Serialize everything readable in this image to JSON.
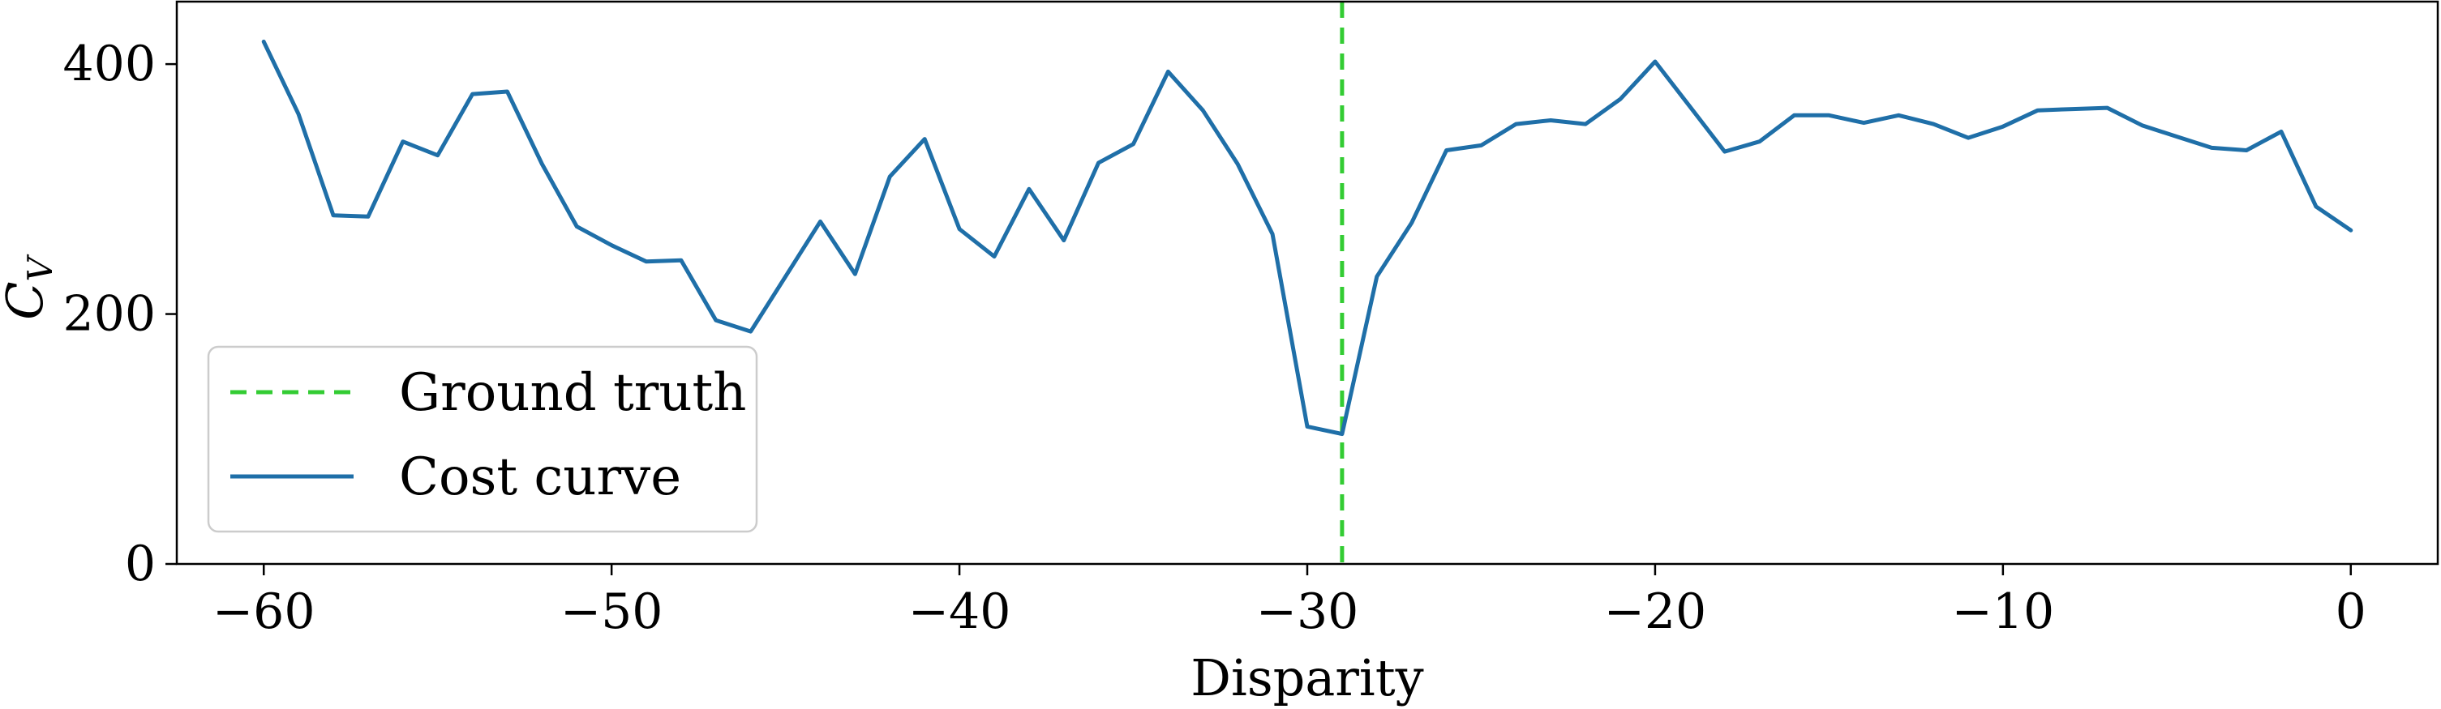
{
  "chart_data": {
    "type": "line",
    "xlabel": "Disparity",
    "ylabel": "C",
    "ylabel_sub": "V",
    "xlim": [
      -62.5,
      2.5
    ],
    "ylim": [
      0,
      450
    ],
    "xticks": [
      -60,
      -50,
      -40,
      -30,
      -20,
      -10,
      0
    ],
    "xtick_labels": [
      "−60",
      "−50",
      "−40",
      "−30",
      "−20",
      "−10",
      "0"
    ],
    "yticks": [
      0,
      200,
      400
    ],
    "ytick_labels": [
      "0",
      "200",
      "400"
    ],
    "grid": false,
    "legend_position": "lower-left",
    "ground_truth": {
      "name": "Ground truth",
      "x": -29,
      "color": "#33cc33",
      "style": "dashed"
    },
    "series": [
      {
        "name": "Cost curve",
        "color": "#1f6fa8",
        "x": [
          -60,
          -59,
          -58,
          -57,
          -56,
          -55,
          -54,
          -53,
          -52,
          -51,
          -50,
          -49,
          -48,
          -47,
          -46,
          -45,
          -44,
          -43,
          -42,
          -41,
          -40,
          -39,
          -38,
          -37,
          -36,
          -35,
          -34,
          -33,
          -32,
          -31,
          -30,
          -29,
          -28,
          -27,
          -26,
          -25,
          -24,
          -23,
          -22,
          -21,
          -20,
          -19,
          -18,
          -17,
          -16,
          -15,
          -14,
          -13,
          -12,
          -11,
          -10,
          -9,
          -8,
          -7,
          -6,
          -5,
          -4,
          -3,
          -2,
          -1,
          0
        ],
        "y": [
          418,
          360,
          279,
          278,
          338,
          327,
          376,
          378,
          320,
          270,
          255,
          242,
          243,
          195,
          186,
          230,
          274,
          232,
          310,
          340,
          268,
          246,
          300,
          259,
          321,
          336,
          394,
          363,
          320,
          264,
          110,
          104,
          230,
          273,
          331,
          335,
          352,
          355,
          352,
          372,
          402,
          366,
          330,
          338,
          359,
          359,
          353,
          359,
          352,
          341,
          350,
          363,
          364,
          365,
          351,
          342,
          333,
          331,
          346,
          286,
          267
        ]
      }
    ]
  }
}
